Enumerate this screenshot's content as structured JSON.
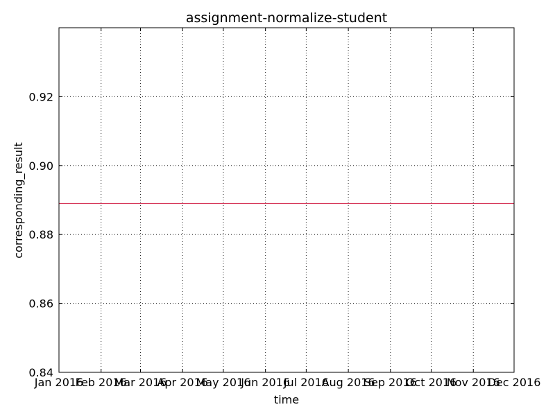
{
  "chart_data": {
    "type": "line",
    "title": "assignment-normalize-student",
    "xlabel": "time",
    "ylabel": "corresponding_result",
    "categories": [
      "Jan 2016",
      "Feb 2016",
      "Mar 2016",
      "Apr 2016",
      "May 2016",
      "Jun 2016",
      "Jul 2016",
      "Aug 2016",
      "Sep 2016",
      "Oct 2016",
      "Nov 2016",
      "Dec 2016"
    ],
    "x": [
      "2016-01-01",
      "2016-12-01"
    ],
    "series": [
      {
        "color": "#d6385a",
        "values": [
          0.889,
          0.889
        ]
      }
    ],
    "ylim": [
      0.84,
      0.94
    ],
    "yticks": [
      0.84,
      0.86,
      0.88,
      0.9,
      0.92
    ],
    "ytick_labels": [
      "0.84",
      "0.86",
      "0.88",
      "0.90",
      "0.92"
    ],
    "grid": true,
    "legend": "none"
  }
}
